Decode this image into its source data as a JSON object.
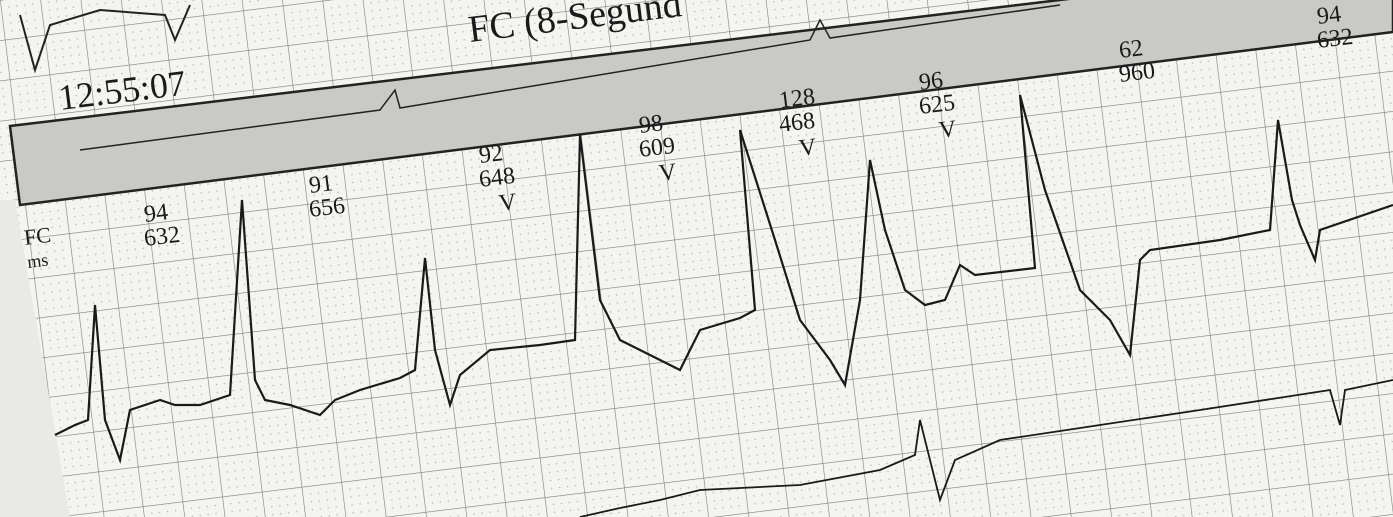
{
  "header": {
    "title": "FC (8-Segund",
    "time": "12:55:07"
  },
  "axis_label": {
    "rate": "FC",
    "interval": "ms"
  },
  "beats": [
    {
      "rate": "94",
      "interval": "632"
    },
    {
      "rate": "91",
      "interval": "656"
    },
    {
      "rate": "92",
      "interval": "648",
      "type": "V"
    },
    {
      "rate": "98",
      "interval": "609",
      "type": "V"
    },
    {
      "rate": "128",
      "interval": "468",
      "type": "V"
    },
    {
      "rate": "96",
      "interval": "625",
      "type": "V"
    },
    {
      "rate": "62",
      "interval": "960"
    },
    {
      "rate": "94",
      "interval": "632"
    }
  ]
}
